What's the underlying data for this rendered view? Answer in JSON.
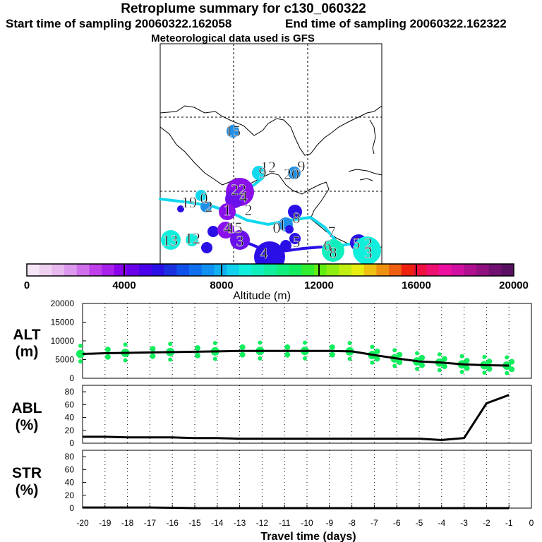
{
  "header": {
    "title": "Retroplume summary for c130_060322",
    "start": "Start time of sampling 20060322.162058",
    "end": "End time of sampling 20060322.162322",
    "met": "Meteorological data used is GFS"
  },
  "colorbar": {
    "label": "Altitude (m)",
    "ticks": [
      "0",
      "4000",
      "8000",
      "12000",
      "16000",
      "20000"
    ],
    "colors": [
      "#f5e6f5",
      "#eed0f0",
      "#e8b8ee",
      "#dc98ec",
      "#cf70ea",
      "#bf40ea",
      "#a820ea",
      "#8a00ea",
      "#6a00ea",
      "#4a00ea",
      "#2a10e6",
      "#1a30e0",
      "#1050ea",
      "#1070f0",
      "#1090f0",
      "#10b0f0",
      "#10d0ee",
      "#10eedc",
      "#10eebe",
      "#10ee9e",
      "#10ee7e",
      "#10ee5e",
      "#30ee30",
      "#60ee10",
      "#90ee10",
      "#c0ee10",
      "#e8ee10",
      "#eec010",
      "#ee9010",
      "#ee6010",
      "#ee2010",
      "#ee1040",
      "#ee1070",
      "#ee10a0",
      "#d010a0",
      "#b01090",
      "#901080",
      "#701070",
      "#5a1060"
    ]
  },
  "map": {
    "labels": [
      {
        "text": "15",
        "color": "#1e90e8"
      },
      {
        "text": "12",
        "color": "#10d8ee"
      },
      {
        "text": "9",
        "color": "#10d8ee"
      },
      {
        "text": "20",
        "color": "#1e90e8"
      },
      {
        "text": "9",
        "color": "#1e90e8"
      },
      {
        "text": "22",
        "color": "#8a10ea"
      },
      {
        "text": "4",
        "color": "#6a10ea"
      },
      {
        "text": "19",
        "color": "#10d8ee"
      },
      {
        "text": "0",
        "color": "#10d8ee"
      },
      {
        "text": "2",
        "color": "#1e90e8"
      },
      {
        "text": "1",
        "color": "#2a10e6"
      },
      {
        "text": "2",
        "color": "#8a10ea"
      },
      {
        "text": "1",
        "color": "#6a10ea"
      },
      {
        "text": "1",
        "color": "#2a10e6"
      },
      {
        "text": "0",
        "color": "#1e90e8"
      },
      {
        "text": "8",
        "color": "#10d8ee"
      },
      {
        "text": "4",
        "color": "#8a10ea"
      },
      {
        "text": "5",
        "color": "#6a10ea"
      },
      {
        "text": "7",
        "color": "#10d8ee"
      },
      {
        "text": "13",
        "color": "#10eedc"
      },
      {
        "text": "12",
        "color": "#10eedc"
      },
      {
        "text": "3",
        "color": "#2a10e6"
      },
      {
        "text": "6",
        "color": "#10eebe"
      },
      {
        "text": "8",
        "color": "#10eebe"
      },
      {
        "text": "5",
        "color": "#2a10e6"
      },
      {
        "text": "2",
        "color": "#10eedc"
      },
      {
        "text": "5",
        "color": "#1e90e8"
      },
      {
        "text": "4",
        "color": "#2a10e6"
      },
      {
        "text": "3",
        "color": "#10eedc"
      }
    ]
  },
  "chart_data": [
    {
      "type": "scatter",
      "panel": "ALT",
      "ylabel": [
        "ALT",
        "(m)"
      ],
      "ylim": [
        0,
        20000
      ],
      "yticks": [
        "0",
        "5000",
        "10000",
        "15000",
        "20000"
      ],
      "x": [
        -20,
        -19,
        -18,
        -17,
        -16,
        -15,
        -14,
        -13,
        -12,
        -11,
        -10,
        -9,
        -8,
        -7,
        -6,
        -5,
        -4,
        -3,
        -2,
        -1
      ],
      "mean_line": [
        6500,
        6700,
        6800,
        6900,
        7000,
        7100,
        7200,
        7300,
        7300,
        7300,
        7300,
        7300,
        7200,
        6200,
        5300,
        4500,
        4200,
        3700,
        3500,
        3400
      ],
      "point_color": "#10ee5e"
    },
    {
      "type": "line",
      "panel": "ABL",
      "ylabel": [
        "ABL",
        "(%)"
      ],
      "ylim": [
        0,
        90
      ],
      "yticks": [
        "0",
        "20",
        "40",
        "60",
        "80"
      ],
      "x": [
        -20,
        -19,
        -18,
        -17,
        -16,
        -15,
        -14,
        -13,
        -12,
        -11,
        -10,
        -9,
        -8,
        -7,
        -6,
        -5,
        -4,
        -3,
        -2,
        -1
      ],
      "values": [
        10,
        10,
        9,
        9,
        9,
        8,
        8,
        7,
        7,
        7,
        7,
        7,
        7,
        7,
        7,
        7,
        5,
        8,
        62,
        75
      ]
    },
    {
      "type": "line",
      "panel": "STR",
      "ylabel": [
        "STR",
        "(%)"
      ],
      "ylim": [
        0,
        90
      ],
      "yticks": [
        "0",
        "20",
        "40",
        "60",
        "80"
      ],
      "x": [
        -20,
        -19,
        -18,
        -17,
        -16,
        -15,
        -14,
        -13,
        -12,
        -11,
        -10,
        -9,
        -8,
        -7,
        -6,
        -5,
        -4,
        -3,
        -2,
        -1
      ],
      "values": [
        1,
        1,
        1,
        1,
        0.5,
        0,
        0,
        0,
        0,
        0,
        0,
        0,
        0,
        0,
        0,
        0,
        0,
        0,
        0,
        0
      ]
    }
  ],
  "xaxis": {
    "ticks": [
      "-20",
      "-19",
      "-18",
      "-17",
      "-16",
      "-15",
      "-14",
      "-13",
      "-12",
      "-11",
      "-10",
      "-9",
      "-8",
      "-7",
      "-6",
      "-5",
      "-4",
      "-3",
      "-2",
      "-1",
      "0"
    ],
    "label": "Travel time (days)"
  }
}
